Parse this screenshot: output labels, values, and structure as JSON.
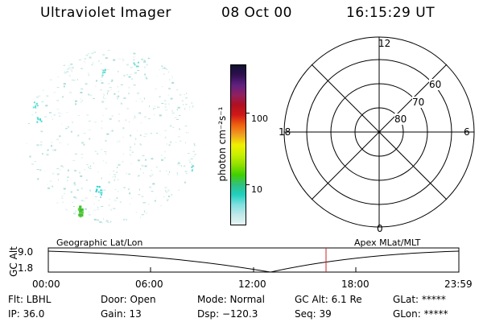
{
  "header": {
    "instrument": "Ultraviolet Imager",
    "date": "08 Oct 00",
    "time": "16:15:29 UT"
  },
  "colorbar": {
    "label": "photon cm⁻²s⁻¹",
    "ticks": [
      "100",
      "10"
    ],
    "colors": [
      "#101030",
      "#301050",
      "#602080",
      "#902060",
      "#b01020",
      "#d01818",
      "#f06010",
      "#f0a020",
      "#f0f000",
      "#c8f000",
      "#90e000",
      "#40d000",
      "#30c080",
      "#20d0c0",
      "#80e0e0",
      "#c0e8e8",
      "#e8f4f4"
    ]
  },
  "polar_grid": {
    "mlt_labels": {
      "top": "12",
      "right": "6",
      "bottom": "0",
      "left": "18"
    },
    "lat_labels": [
      "80",
      "70",
      "60"
    ]
  },
  "timeline": {
    "left_title": "Geographic Lat/Lon",
    "right_title": "Apex MLat/MLT",
    "axis_label": "GC Alt",
    "y_ticks": [
      "9.0",
      "1.8"
    ],
    "x_ticks": [
      "00:00",
      "06:00",
      "12:00",
      "18:00",
      "23:59"
    ],
    "marker_color": "#d02020"
  },
  "info": {
    "row1": [
      "Flt: LBHL",
      "Door: Open",
      "Mode: Normal",
      "GC Alt: 6.1 Re",
      "GLat: *****"
    ],
    "row2": [
      "IP: 36.0",
      "Gain: 13",
      "Dsp: −120.3",
      "Seq: 39",
      "GLon: *****"
    ]
  }
}
